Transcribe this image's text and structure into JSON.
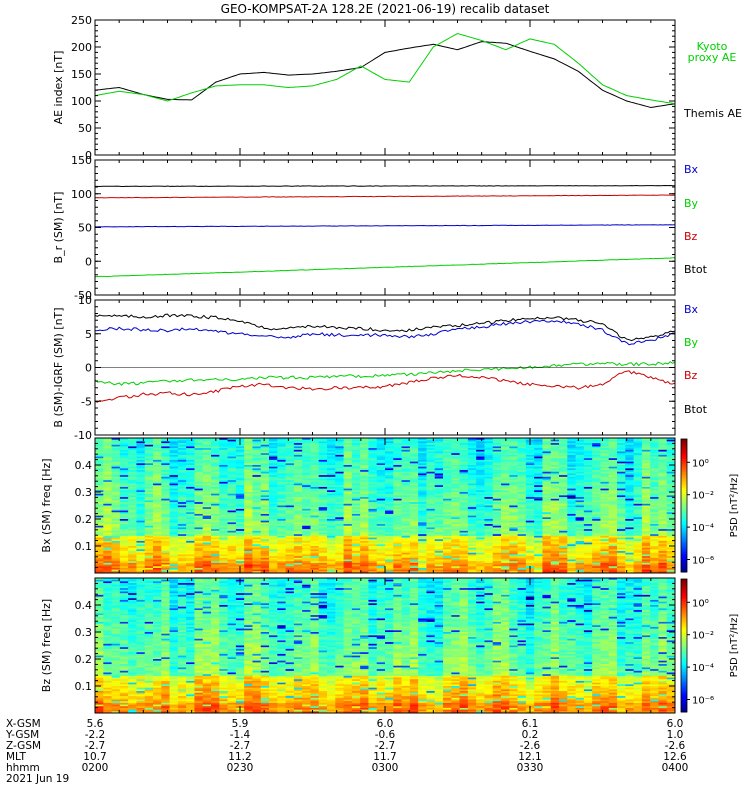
{
  "title": "GEO-KOMPSAT-2A 128.2E (2021-06-19) recalib dataset",
  "colors": {
    "black": "#000000",
    "green": "#00d000",
    "red": "#cc0000",
    "blue": "#0000cc"
  },
  "chart_data": [
    {
      "id": "ae",
      "type": "line",
      "ylabel": "AE index [nT]",
      "ylim": [
        0,
        250
      ],
      "yticks": [
        0,
        50,
        100,
        150,
        200,
        250
      ],
      "legend": [
        {
          "label": "Kyoto proxy AE",
          "color": "#00d000"
        },
        {
          "label": "Themis AE",
          "color": "#000000"
        }
      ],
      "x": [
        "0200",
        "0205",
        "0210",
        "0215",
        "0220",
        "0225",
        "0230",
        "0235",
        "0240",
        "0245",
        "0250",
        "0255",
        "0300",
        "0305",
        "0310",
        "0315",
        "0320",
        "0325",
        "0330",
        "0335",
        "0340",
        "0345",
        "0350",
        "0355",
        "0400"
      ],
      "series": [
        {
          "name": "Themis AE",
          "color": "#000000",
          "values": [
            120,
            125,
            112,
            103,
            102,
            135,
            150,
            153,
            148,
            150,
            155,
            162,
            190,
            198,
            205,
            195,
            210,
            207,
            192,
            178,
            155,
            120,
            100,
            88,
            95
          ]
        },
        {
          "name": "Kyoto proxy AE",
          "color": "#00d000",
          "values": [
            110,
            118,
            112,
            100,
            115,
            128,
            130,
            130,
            125,
            128,
            140,
            165,
            140,
            135,
            200,
            225,
            212,
            195,
            215,
            205,
            170,
            130,
            110,
            102,
            95
          ]
        }
      ]
    },
    {
      "id": "b",
      "type": "line",
      "ylabel": "B_r (SM) [nT]",
      "ylim": [
        -50,
        150
      ],
      "yticks": [
        -50,
        0,
        50,
        100,
        150
      ],
      "legend": [
        {
          "label": "Bx",
          "color": "#0000cc"
        },
        {
          "label": "By",
          "color": "#00d000"
        },
        {
          "label": "Bz",
          "color": "#cc0000"
        },
        {
          "label": "Btot",
          "color": "#000000"
        }
      ],
      "x": [
        0,
        1
      ],
      "series": [
        {
          "name": "Btot",
          "color": "#000000",
          "values": [
            111,
            112
          ]
        },
        {
          "name": "Bz",
          "color": "#cc0000",
          "values": [
            94,
            98
          ]
        },
        {
          "name": "Bx",
          "color": "#0000cc",
          "values": [
            51,
            54
          ]
        },
        {
          "name": "By",
          "color": "#00d000",
          "values": [
            -23,
            5
          ]
        }
      ]
    },
    {
      "id": "db",
      "type": "line",
      "ylabel": "B (SM)-IGRF (SM) [nT]",
      "ylim": [
        -10,
        10
      ],
      "yticks": [
        -10,
        -5,
        0,
        5,
        10
      ],
      "legend": [
        {
          "label": "Bx",
          "color": "#0000cc"
        },
        {
          "label": "By",
          "color": "#00d000"
        },
        {
          "label": "Bz",
          "color": "#cc0000"
        },
        {
          "label": "Btot",
          "color": "#000000"
        }
      ],
      "x": [
        "0200",
        "0205",
        "0210",
        "0215",
        "0220",
        "0225",
        "0230",
        "0235",
        "0240",
        "0245",
        "0250",
        "0255",
        "0300",
        "0305",
        "0310",
        "0315",
        "0320",
        "0325",
        "0330",
        "0335",
        "0340",
        "0345",
        "0350",
        "0355",
        "0400"
      ],
      "series": [
        {
          "name": "Btot",
          "color": "#000000",
          "values": [
            7.8,
            7.6,
            7.5,
            7.7,
            7.6,
            7.4,
            7.0,
            5.8,
            5.8,
            6.2,
            5.8,
            5.8,
            5.5,
            5.5,
            6.0,
            6.2,
            6.5,
            7.0,
            7.2,
            7.5,
            7.0,
            6.5,
            4.0,
            4.5,
            5.5
          ]
        },
        {
          "name": "Bx",
          "color": "#0000cc",
          "values": [
            5.5,
            5.8,
            5.6,
            5.5,
            5.8,
            5.3,
            5.0,
            4.5,
            4.5,
            5.0,
            4.8,
            4.8,
            4.8,
            4.5,
            5.0,
            5.8,
            6.0,
            6.5,
            6.8,
            7.0,
            6.5,
            5.5,
            3.5,
            4.0,
            5.0
          ]
        },
        {
          "name": "By",
          "color": "#00d000",
          "values": [
            -2.0,
            -2.5,
            -2.3,
            -2.0,
            -1.8,
            -1.8,
            -1.8,
            -1.5,
            -1.5,
            -1.5,
            -1.3,
            -1.3,
            -1.2,
            -1.0,
            -0.8,
            -0.5,
            -0.3,
            -0.2,
            0.0,
            0.3,
            0.5,
            0.6,
            0.5,
            0.5,
            0.8
          ]
        },
        {
          "name": "Bz",
          "color": "#cc0000",
          "values": [
            -5.0,
            -4.5,
            -4.0,
            -3.8,
            -4.0,
            -3.5,
            -2.8,
            -2.5,
            -3.0,
            -3.2,
            -3.0,
            -3.0,
            -2.8,
            -2.2,
            -1.5,
            -1.2,
            -1.5,
            -2.0,
            -2.5,
            -2.8,
            -3.0,
            -2.5,
            -0.5,
            -1.5,
            -2.5
          ]
        }
      ]
    },
    {
      "id": "bxspec",
      "type": "heatmap",
      "ylabel": "Bx (SM) freq [Hz]",
      "ylim": [
        0,
        0.5
      ],
      "yticks": [
        0.1,
        0.2,
        0.3,
        0.4
      ],
      "colorbar": {
        "label": "PSD [nT²/Hz]",
        "ticks": [
          "10⁰",
          "10⁻²",
          "10⁻⁴",
          "10⁻⁶"
        ]
      }
    },
    {
      "id": "bzspec",
      "type": "heatmap",
      "ylabel": "Bz (SM) freq [Hz]",
      "ylim": [
        0,
        0.5
      ],
      "yticks": [
        0.1,
        0.2,
        0.3,
        0.4
      ],
      "colorbar": {
        "label": "PSD [nT²/Hz]",
        "ticks": [
          "10⁰",
          "10⁻²",
          "10⁻⁴",
          "10⁻⁶"
        ]
      }
    }
  ],
  "footer": {
    "rows": [
      {
        "label": "X-GSM",
        "values": [
          "5.6",
          "5.9",
          "6.0",
          "6.1",
          "6.0"
        ]
      },
      {
        "label": "Y-GSM",
        "values": [
          "-2.2",
          "-1.4",
          "-0.6",
          "0.2",
          "1.0"
        ]
      },
      {
        "label": "Z-GSM",
        "values": [
          "-2.7",
          "-2.7",
          "-2.7",
          "-2.6",
          "-2.6"
        ]
      },
      {
        "label": "MLT",
        "values": [
          "10.7",
          "11.2",
          "11.7",
          "12.1",
          "12.6"
        ]
      },
      {
        "label": "hhmm",
        "values": [
          "0200",
          "0230",
          "0300",
          "0330",
          "0400"
        ]
      }
    ],
    "date": "2021 Jun 19"
  }
}
